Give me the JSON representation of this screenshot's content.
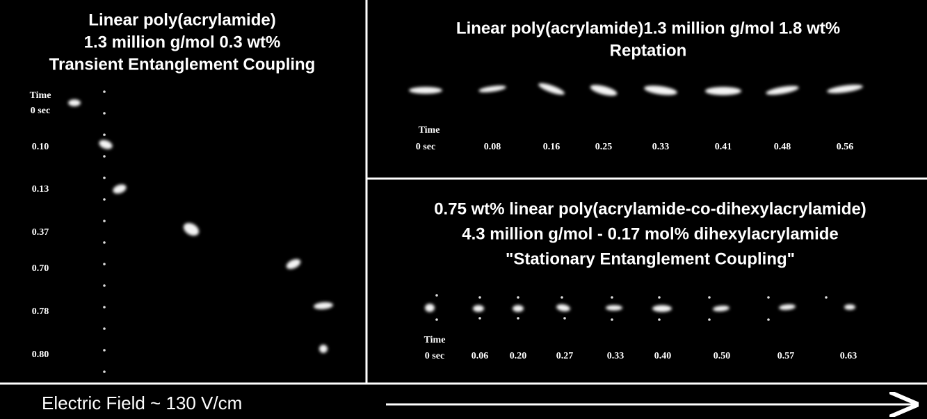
{
  "left_panel": {
    "title": [
      "Linear poly(acrylamide)",
      "1.3 million g/mol 0.3 wt%",
      "Transient Entanglement Coupling"
    ],
    "time_header": "Time",
    "time_labels": [
      "0 sec",
      "0.10",
      "0.13",
      "0.37",
      "0.70",
      "0.78",
      "0.80"
    ]
  },
  "top_right_panel": {
    "title": [
      "Linear poly(acrylamide)1.3 million g/mol 1.8 wt%",
      "Reptation"
    ],
    "time_header": "Time",
    "time_labels": [
      "0 sec",
      "0.08",
      "0.16",
      "0.25",
      "0.33",
      "0.41",
      "0.48",
      "0.56"
    ]
  },
  "bottom_right_panel": {
    "title": [
      "0.75 wt% linear poly(acrylamide-co-dihexylacrylamide)",
      "4.3 million g/mol - 0.17 mol% dihexylacrylamide",
      "\"Stationary Entanglement Coupling\""
    ],
    "time_header": "Time",
    "time_labels": [
      "0 sec",
      "0.06",
      "0.20",
      "0.27",
      "0.33",
      "0.40",
      "0.50",
      "0.57",
      "0.63"
    ]
  },
  "footer": {
    "label": "Electric Field ~ 130 V/cm"
  }
}
